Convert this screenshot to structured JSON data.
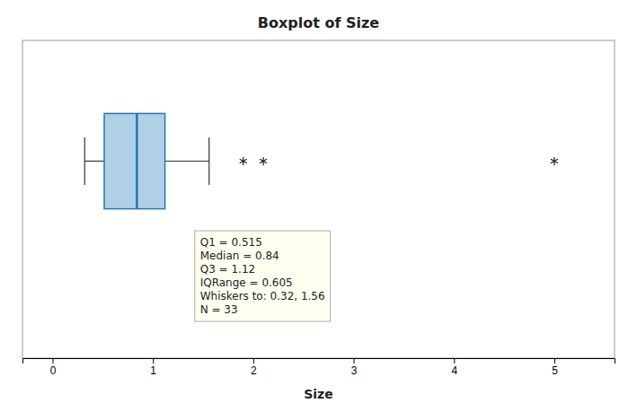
{
  "chart_data": {
    "type": "box",
    "orientation": "horizontal",
    "title": "Boxplot of Size",
    "xlabel": "Size",
    "q1": 0.515,
    "median": 0.84,
    "q3": 1.12,
    "whisker_low": 0.32,
    "whisker_high": 1.56,
    "outliers": [
      1.9,
      2.1,
      5.0
    ],
    "xlim": [
      -0.3,
      5.6
    ],
    "xticks": [
      0,
      1,
      2,
      3,
      4,
      5
    ],
    "annotations": [
      "Q1 = 0.515",
      "Median = 0.84",
      "Q3 = 1.12",
      "IQRange = 0.605",
      "Whiskers to: 0.32, 1.56",
      "N = 33"
    ]
  }
}
